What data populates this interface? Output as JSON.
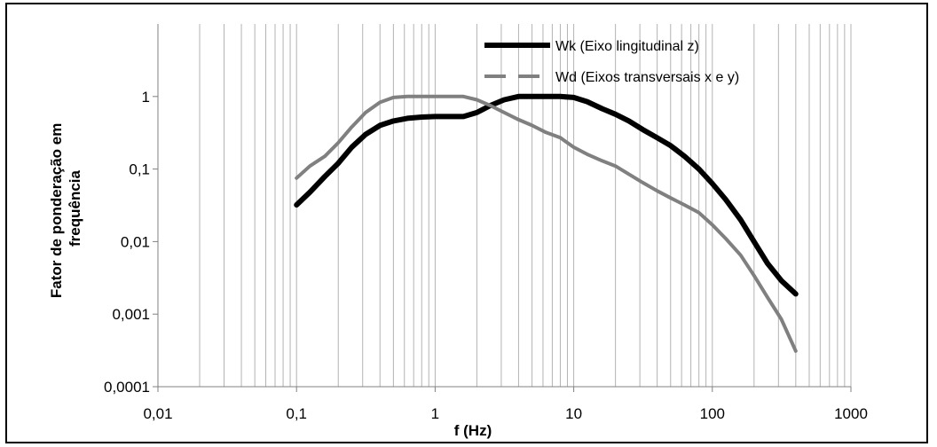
{
  "chart_data": {
    "type": "line",
    "title": "",
    "xlabel": "f (Hz)",
    "ylabel_lines": [
      "Fator de ponderação em",
      "frequência"
    ],
    "xscale": "log",
    "yscale": "log",
    "xlim": [
      0.01,
      1000
    ],
    "ylim": [
      0.0001,
      10
    ],
    "grid": "vertical minor and major",
    "legend_position": "top-right",
    "x_tick_labels": [
      "0,01",
      "0,1",
      "1",
      "10",
      "100",
      "1000"
    ],
    "y_tick_labels": [
      "0,0001",
      "0,001",
      "0,01",
      "0,1",
      "1"
    ],
    "series": [
      {
        "name": "Wk (Eixo lingitudinal z)",
        "color": "#000000",
        "style": "solid",
        "x": [
          0.1,
          0.125,
          0.16,
          0.2,
          0.25,
          0.315,
          0.4,
          0.5,
          0.63,
          0.8,
          1,
          1.25,
          1.6,
          2,
          2.5,
          3.15,
          4,
          5,
          6.3,
          8,
          10,
          12.5,
          16,
          20,
          25,
          31.5,
          40,
          50,
          63,
          80,
          100,
          125,
          160,
          200,
          250,
          315,
          400
        ],
        "y": [
          0.032,
          0.048,
          0.079,
          0.12,
          0.2,
          0.3,
          0.4,
          0.46,
          0.5,
          0.52,
          0.53,
          0.53,
          0.53,
          0.6,
          0.75,
          0.9,
          1.0,
          1.0,
          1.0,
          1.0,
          0.97,
          0.85,
          0.68,
          0.57,
          0.46,
          0.35,
          0.27,
          0.21,
          0.15,
          0.1,
          0.063,
          0.038,
          0.02,
          0.01,
          0.005,
          0.0029,
          0.0019
        ]
      },
      {
        "name": "Wd (Eixos transversais x e y)",
        "color": "#808080",
        "style": "solid",
        "x": [
          0.1,
          0.125,
          0.16,
          0.2,
          0.25,
          0.315,
          0.4,
          0.5,
          0.63,
          0.8,
          1,
          1.25,
          1.6,
          2,
          2.5,
          3.15,
          4,
          5,
          6.3,
          8,
          10,
          12.5,
          16,
          20,
          25,
          31.5,
          40,
          50,
          63,
          80,
          100,
          125,
          160,
          200,
          250,
          315,
          400
        ],
        "y": [
          0.075,
          0.11,
          0.15,
          0.23,
          0.38,
          0.6,
          0.83,
          0.97,
          1.0,
          1.0,
          1.0,
          1.0,
          1.0,
          0.9,
          0.75,
          0.6,
          0.48,
          0.4,
          0.32,
          0.27,
          0.2,
          0.16,
          0.13,
          0.11,
          0.085,
          0.065,
          0.05,
          0.04,
          0.032,
          0.025,
          0.017,
          0.011,
          0.0065,
          0.0034,
          0.0017,
          0.00085,
          0.00031
        ]
      }
    ]
  }
}
